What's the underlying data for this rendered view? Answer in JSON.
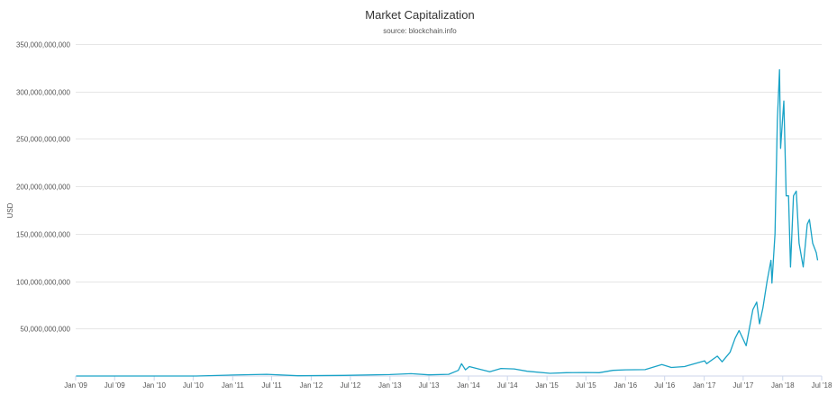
{
  "chart_data": {
    "type": "line",
    "title": "Market Capitalization",
    "subtitle": "source: blockchain.info",
    "ylabel": "USD",
    "xlabel": "",
    "color": "#1aa3c7",
    "grid": true,
    "legend": "none",
    "ylim": [
      0,
      350000000000
    ],
    "xlim": [
      "2009-01-01",
      "2018-07-01"
    ],
    "yticks": [
      {
        "value": 50000000000,
        "label": "50,000,000,000"
      },
      {
        "value": 100000000000,
        "label": "100,000,000,000"
      },
      {
        "value": 150000000000,
        "label": "150,000,000,000"
      },
      {
        "value": 200000000000,
        "label": "200,000,000,000"
      },
      {
        "value": 250000000000,
        "label": "250,000,000,000"
      },
      {
        "value": 300000000000,
        "label": "300,000,000,000"
      },
      {
        "value": 350000000000,
        "label": "350,000,000,000"
      }
    ],
    "xticks": [
      {
        "date": "2009-01-01",
        "label": "Jan '09"
      },
      {
        "date": "2009-07-01",
        "label": "Jul '09"
      },
      {
        "date": "2010-01-01",
        "label": "Jan '10"
      },
      {
        "date": "2010-07-01",
        "label": "Jul '10"
      },
      {
        "date": "2011-01-01",
        "label": "Jan '11"
      },
      {
        "date": "2011-07-01",
        "label": "Jul '11"
      },
      {
        "date": "2012-01-01",
        "label": "Jan '12"
      },
      {
        "date": "2012-07-01",
        "label": "Jul '12"
      },
      {
        "date": "2013-01-01",
        "label": "Jan '13"
      },
      {
        "date": "2013-07-01",
        "label": "Jul '13"
      },
      {
        "date": "2014-01-01",
        "label": "Jan '14"
      },
      {
        "date": "2014-07-01",
        "label": "Jul '14"
      },
      {
        "date": "2015-01-01",
        "label": "Jan '15"
      },
      {
        "date": "2015-07-01",
        "label": "Jul '15"
      },
      {
        "date": "2016-01-01",
        "label": "Jan '16"
      },
      {
        "date": "2016-07-01",
        "label": "Jul '16"
      },
      {
        "date": "2017-01-01",
        "label": "Jan '17"
      },
      {
        "date": "2017-07-01",
        "label": "Jul '17"
      },
      {
        "date": "2018-01-01",
        "label": "Jan '18"
      },
      {
        "date": "2018-07-01",
        "label": "Jul '18"
      }
    ],
    "series": [
      {
        "points": [
          [
            "2009-01-03",
            0
          ],
          [
            "2010-07-15",
            5000000
          ],
          [
            "2011-01-01",
            1000000000
          ],
          [
            "2011-06-08",
            1800000000
          ],
          [
            "2011-11-01",
            300000000
          ],
          [
            "2012-06-01",
            700000000
          ],
          [
            "2013-01-01",
            1500000000
          ],
          [
            "2013-04-09",
            2500000000
          ],
          [
            "2013-07-01",
            1200000000
          ],
          [
            "2013-10-01",
            1800000000
          ],
          [
            "2013-11-15",
            6000000000
          ],
          [
            "2013-11-30",
            13000000000
          ],
          [
            "2013-12-18",
            6500000000
          ],
          [
            "2014-01-05",
            10000000000
          ],
          [
            "2014-02-25",
            7000000000
          ],
          [
            "2014-04-10",
            4500000000
          ],
          [
            "2014-06-01",
            8000000000
          ],
          [
            "2014-08-01",
            7500000000
          ],
          [
            "2014-10-01",
            5000000000
          ],
          [
            "2015-01-15",
            2800000000
          ],
          [
            "2015-04-01",
            3500000000
          ],
          [
            "2015-07-01",
            3700000000
          ],
          [
            "2015-09-01",
            3500000000
          ],
          [
            "2015-11-04",
            6000000000
          ],
          [
            "2016-01-01",
            6500000000
          ],
          [
            "2016-04-01",
            6700000000
          ],
          [
            "2016-06-18",
            12000000000
          ],
          [
            "2016-08-01",
            9000000000
          ],
          [
            "2016-10-01",
            10000000000
          ],
          [
            "2017-01-03",
            16000000000
          ],
          [
            "2017-01-12",
            13000000000
          ],
          [
            "2017-03-03",
            21000000000
          ],
          [
            "2017-03-25",
            15000000000
          ],
          [
            "2017-05-01",
            25000000000
          ],
          [
            "2017-05-25",
            40000000000
          ],
          [
            "2017-06-12",
            48000000000
          ],
          [
            "2017-07-15",
            32000000000
          ],
          [
            "2017-08-15",
            70000000000
          ],
          [
            "2017-09-02",
            78000000000
          ],
          [
            "2017-09-15",
            55000000000
          ],
          [
            "2017-10-01",
            72000000000
          ],
          [
            "2017-10-20",
            100000000000
          ],
          [
            "2017-11-07",
            122000000000
          ],
          [
            "2017-11-12",
            98000000000
          ],
          [
            "2017-11-26",
            150000000000
          ],
          [
            "2017-12-07",
            270000000000
          ],
          [
            "2017-12-17",
            323000000000
          ],
          [
            "2017-12-22",
            240000000000
          ],
          [
            "2017-12-28",
            260000000000
          ],
          [
            "2018-01-06",
            290000000000
          ],
          [
            "2018-01-17",
            190000000000
          ],
          [
            "2018-01-28",
            190000000000
          ],
          [
            "2018-02-06",
            115000000000
          ],
          [
            "2018-02-20",
            190000000000
          ],
          [
            "2018-03-05",
            195000000000
          ],
          [
            "2018-03-18",
            140000000000
          ],
          [
            "2018-04-06",
            115000000000
          ],
          [
            "2018-04-25",
            160000000000
          ],
          [
            "2018-05-05",
            165000000000
          ],
          [
            "2018-05-20",
            140000000000
          ],
          [
            "2018-06-06",
            130000000000
          ],
          [
            "2018-06-12",
            122000000000
          ]
        ]
      }
    ]
  }
}
